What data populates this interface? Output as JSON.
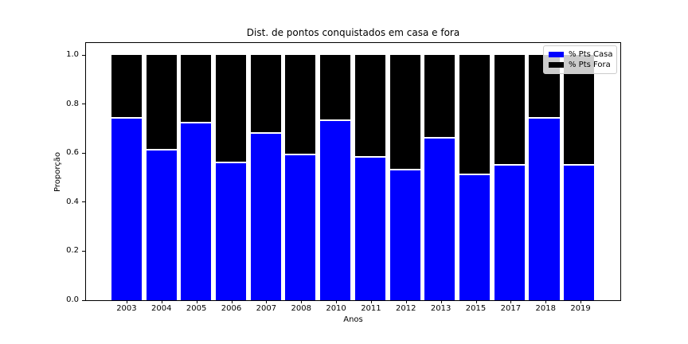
{
  "chart_data": {
    "type": "bar",
    "stacked": true,
    "title": "Dist. de pontos conquistados em casa e fora",
    "xlabel": "Anos",
    "ylabel": "Proporção",
    "categories": [
      "2003",
      "2004",
      "2005",
      "2006",
      "2007",
      "2008",
      "2010",
      "2011",
      "2012",
      "2013",
      "2015",
      "2017",
      "2018",
      "2019"
    ],
    "series": [
      {
        "name": "% Pts Casa",
        "color": "#0000ff",
        "values": [
          0.74,
          0.61,
          0.72,
          0.56,
          0.68,
          0.59,
          0.73,
          0.58,
          0.53,
          0.66,
          0.51,
          0.55,
          0.74,
          0.55
        ]
      },
      {
        "name": "% Pts Fora",
        "color": "#000000",
        "values": [
          0.26,
          0.39,
          0.28,
          0.44,
          0.32,
          0.41,
          0.27,
          0.42,
          0.47,
          0.34,
          0.49,
          0.45,
          0.26,
          0.45
        ]
      }
    ],
    "ylim": [
      0,
      1.049
    ],
    "yticks": [
      "0.0",
      "0.2",
      "0.4",
      "0.6",
      "0.8",
      "1.0"
    ],
    "grid": false,
    "legend_position": "upper right",
    "background": "#ffffff",
    "spine_color": "#000000"
  }
}
